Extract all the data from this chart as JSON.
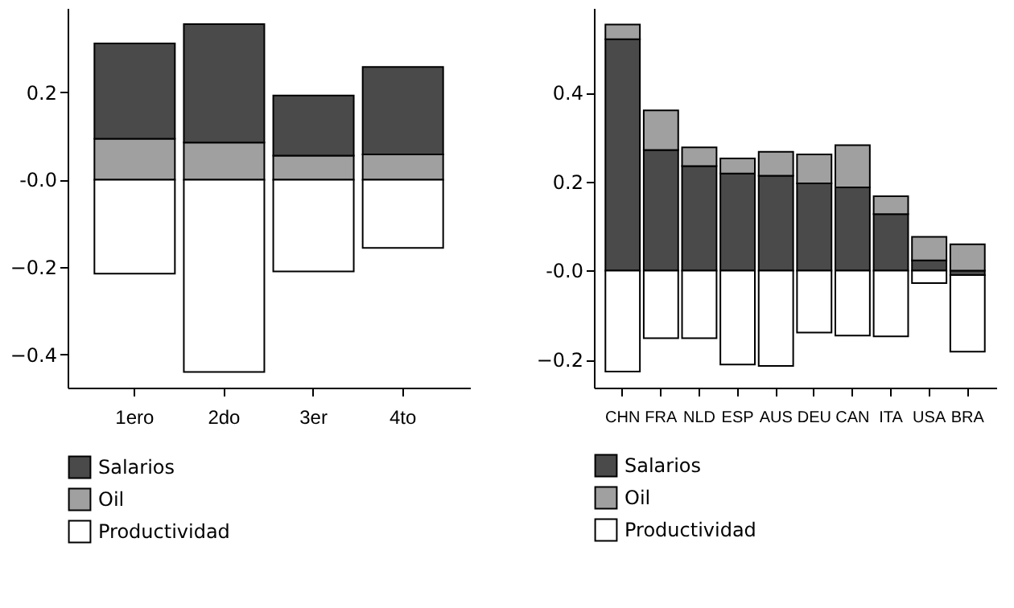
{
  "chart_data": [
    {
      "type": "bar",
      "stacked": true,
      "categories": [
        "1ero",
        "2do",
        "3er",
        "4to"
      ],
      "series": [
        {
          "name": "Oil",
          "color": "#a0a0a0",
          "values": [
            0.094,
            0.085,
            0.055,
            0.058
          ]
        },
        {
          "name": "Salarios",
          "color": "#4a4a4a",
          "values": [
            0.218,
            0.271,
            0.138,
            0.2
          ]
        },
        {
          "name": "Productividad",
          "color": "#ffffff",
          "values": [
            -0.215,
            -0.44,
            -0.21,
            -0.156
          ]
        }
      ],
      "ylim": [
        -0.476,
        0.393
      ],
      "yticks": [
        -0.4,
        -0.2,
        {
          "value": 0,
          "label": "-0.0"
        },
        0.2
      ],
      "grid": false,
      "legend": "bottom"
    },
    {
      "type": "bar",
      "stacked": true,
      "categories": [
        "CHN",
        "FRA",
        "NLD",
        "ESP",
        "AUS",
        "DEU",
        "CAN",
        "ITA",
        "USA",
        "BRA"
      ],
      "series": [
        {
          "name": "Salarios",
          "color": "#4a4a4a",
          "values": [
            0.52,
            0.271,
            0.235,
            0.218,
            0.213,
            0.196,
            0.187,
            0.127,
            0.023,
            -0.01
          ]
        },
        {
          "name": "Oil",
          "color": "#a0a0a0",
          "values": [
            0.033,
            0.089,
            0.042,
            0.034,
            0.054,
            0.065,
            0.095,
            0.04,
            0.053,
            0.059
          ]
        },
        {
          "name": "Productividad",
          "color": "#ffffff",
          "values": [
            -0.227,
            -0.152,
            -0.152,
            -0.211,
            -0.214,
            -0.139,
            -0.146,
            -0.148,
            -0.028,
            -0.172
          ]
        }
      ],
      "ylim": [
        -0.263,
        0.59
      ],
      "yticks": [
        -0.2,
        {
          "value": 0,
          "label": "-0.0"
        },
        0.2,
        0.4
      ],
      "grid": false,
      "legend": "bottom"
    }
  ]
}
